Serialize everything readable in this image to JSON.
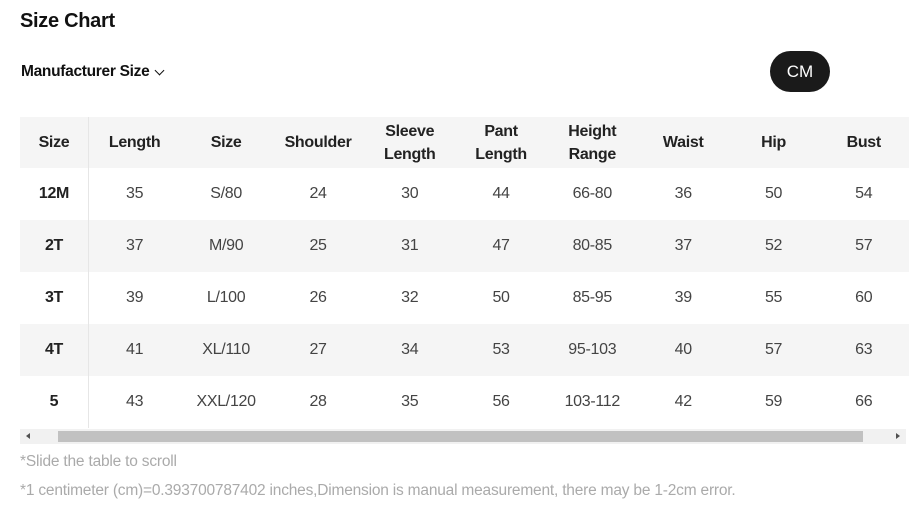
{
  "title": "Size Chart",
  "size_selector": {
    "label": "Manufacturer Size"
  },
  "unit_button": "CM",
  "table": {
    "headers": [
      "Size",
      "Length",
      "Size",
      "Shoulder",
      "Sleeve Length",
      "Pant Length",
      "Height Range",
      "Waist",
      "Hip",
      "Bust"
    ],
    "rows": [
      [
        "12M",
        "35",
        "S/80",
        "24",
        "30",
        "44",
        "66-80",
        "36",
        "50",
        "54"
      ],
      [
        "2T",
        "37",
        "M/90",
        "25",
        "31",
        "47",
        "80-85",
        "37",
        "52",
        "57"
      ],
      [
        "3T",
        "39",
        "L/100",
        "26",
        "32",
        "50",
        "85-95",
        "39",
        "55",
        "60"
      ],
      [
        "4T",
        "41",
        "XL/110",
        "27",
        "34",
        "53",
        "95-103",
        "40",
        "57",
        "63"
      ],
      [
        "5",
        "43",
        "XXL/120",
        "28",
        "35",
        "56",
        "103-112",
        "42",
        "59",
        "66"
      ]
    ]
  },
  "notes": {
    "scroll_hint": "*Slide the table to scroll",
    "conversion": "*1 centimeter (cm)=0.393700787402 inches,Dimension is manual measurement, there may be 1-2cm error."
  }
}
